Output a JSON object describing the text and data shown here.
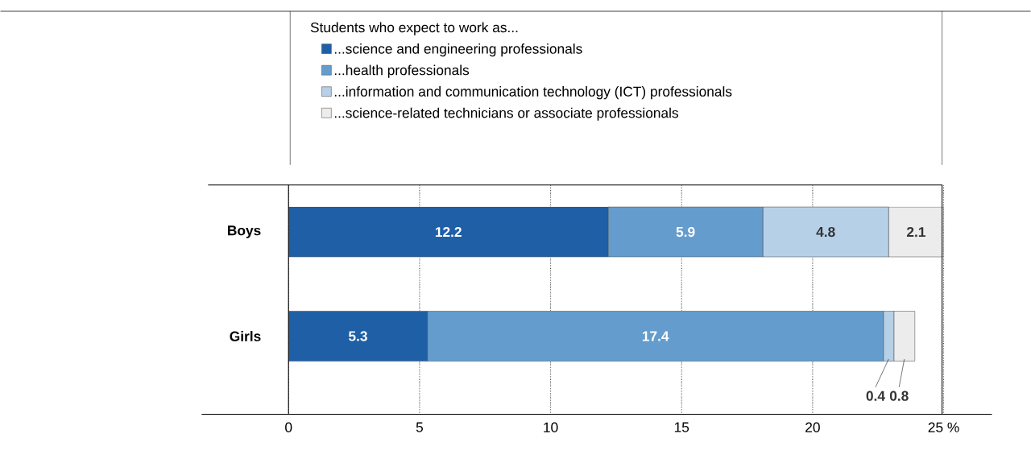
{
  "chart_data": {
    "type": "bar",
    "orientation": "horizontal",
    "stacked": true,
    "categories": [
      "Boys",
      "Girls"
    ],
    "legend_title": "Students who expect to work as...",
    "series": [
      {
        "name": "...science and engineering professionals",
        "color": "#1f5fa6",
        "values": [
          12.2,
          5.3
        ]
      },
      {
        "name": "...health professionals",
        "color": "#649dcd",
        "values": [
          5.9,
          17.4
        ]
      },
      {
        "name": "...information and communication technology (ICT) professionals",
        "color": "#b6d0e7",
        "values": [
          4.8,
          0.4
        ]
      },
      {
        "name": "...science-related technicians or associate professionals",
        "color": "#ececec",
        "values": [
          2.1,
          0.8
        ]
      }
    ],
    "xlim": [
      0,
      25
    ],
    "xticks": [
      0,
      5,
      10,
      15,
      20,
      {
        "value": 25,
        "label": "25 %"
      }
    ],
    "grid": "x",
    "legend": "top",
    "data_labels": true
  }
}
